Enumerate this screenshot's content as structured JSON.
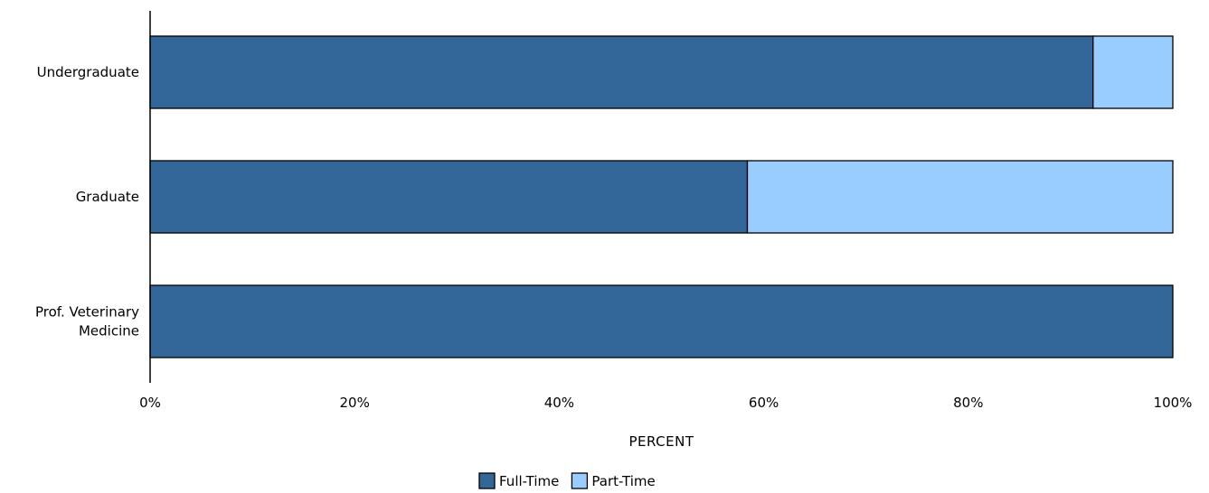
{
  "chart_data": {
    "type": "bar",
    "orientation": "horizontal",
    "stacked": true,
    "categories": [
      "Undergraduate",
      "Graduate",
      "Prof. Veterinary Medicine"
    ],
    "category_lines": [
      [
        "Undergraduate"
      ],
      [
        "Graduate"
      ],
      [
        "Prof. Veterinary",
        "Medicine"
      ]
    ],
    "series": [
      {
        "name": "Full-Time",
        "values": [
          92.2,
          58.4,
          100
        ],
        "color": "#336699"
      },
      {
        "name": "Part-Time",
        "values": [
          7.8,
          41.6,
          0
        ],
        "color": "#99ccff"
      }
    ],
    "xlabel": "PERCENT",
    "ylabel": "",
    "xlim": [
      0,
      100
    ],
    "x_ticks": [
      "0%",
      "20%",
      "40%",
      "60%",
      "80%",
      "100%"
    ],
    "grid": false,
    "legend_position": "bottom-center"
  }
}
